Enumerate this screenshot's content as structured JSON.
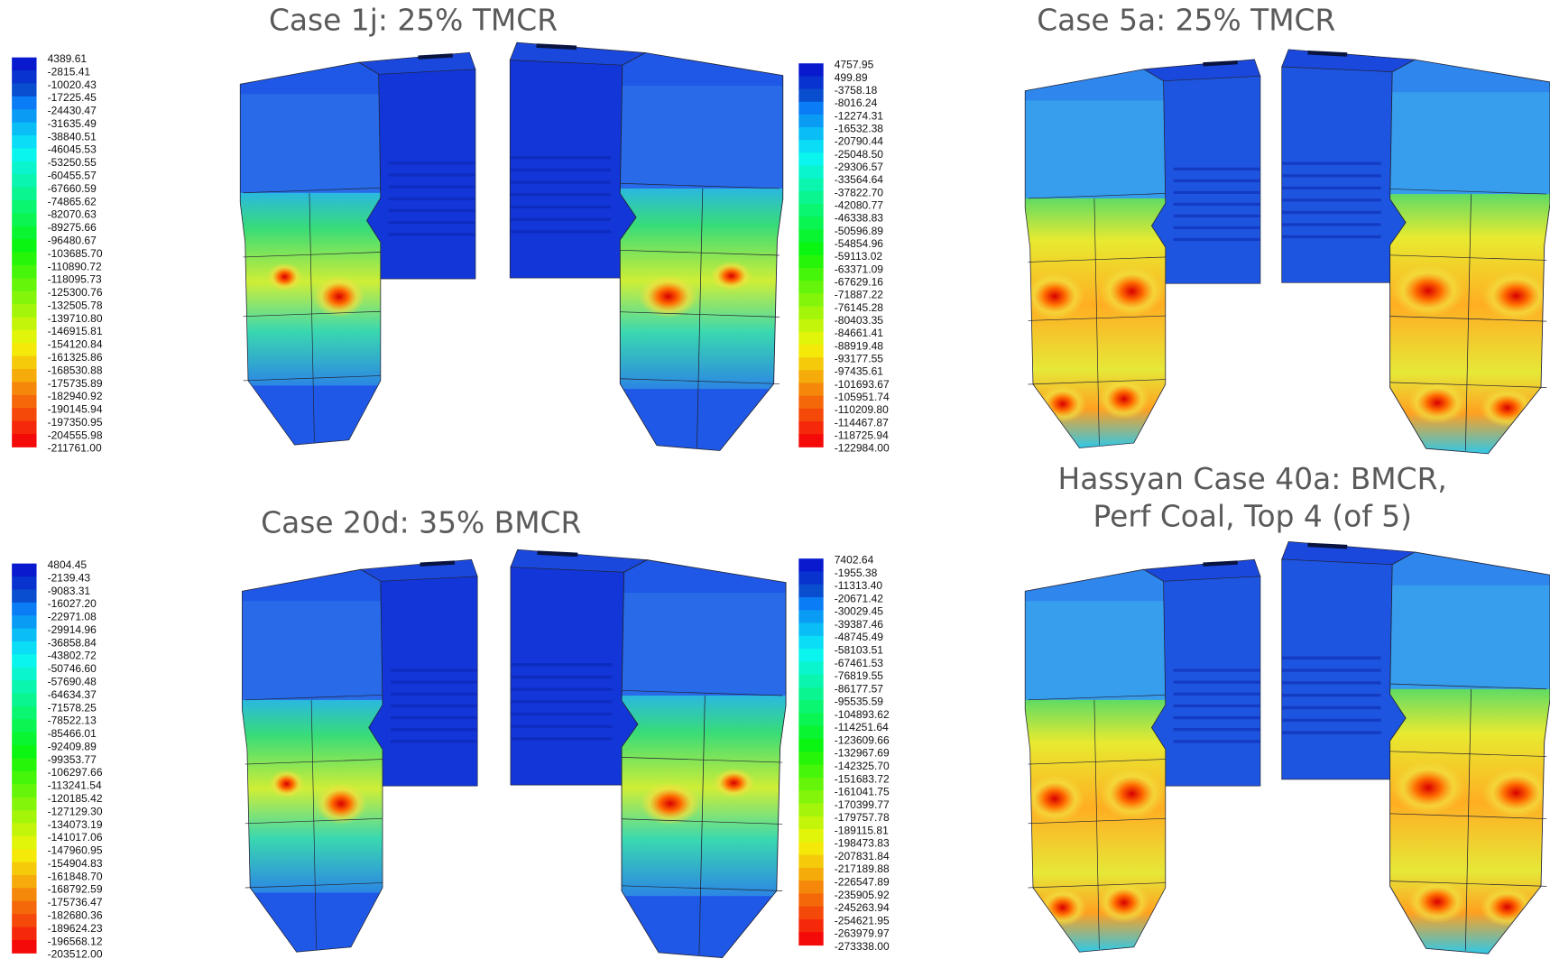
{
  "panels": [
    {
      "title_lines": [
        "Case 1j: 25% TMCR"
      ],
      "legends": [
        {
          "labels": [
            "4389.61",
            "-2815.41",
            "-10020.43",
            "-17225.45",
            "-24430.47",
            "-31635.49",
            "-38840.51",
            "-46045.53",
            "-53250.55",
            "-60455.57",
            "-67660.59",
            "-74865.62",
            "-82070.63",
            "-89275.66",
            "-96480.67",
            "-103685.70",
            "-110890.72",
            "-118095.73",
            "-125300.76",
            "-132505.78",
            "-139710.80",
            "-146915.81",
            "-154120.84",
            "-161325.86",
            "-168530.88",
            "-175735.89",
            "-182940.92",
            "-190145.94",
            "-197350.95",
            "-204555.98",
            "-211761.00"
          ]
        },
        {
          "labels": [
            "4757.95",
            "499.89",
            "-3758.18",
            "-8016.24",
            "-12274.31",
            "-16532.38",
            "-20790.44",
            "-25048.50",
            "-29306.57",
            "-33564.64",
            "-37822.70",
            "-42080.77",
            "-46338.83",
            "-50596.89",
            "-54854.96",
            "-59113.02",
            "-63371.09",
            "-67629.16",
            "-71887.22",
            "-76145.28",
            "-80403.35",
            "-84661.41",
            "-88919.48",
            "-93177.55",
            "-97435.61",
            "-101693.67",
            "-105951.74",
            "-110209.80",
            "-114467.87",
            "-118725.94",
            "-122984.00"
          ]
        }
      ]
    },
    {
      "title_lines": [
        "Case 5a: 25% TMCR"
      ]
    },
    {
      "title_lines": [
        "Case 20d: 35% BMCR"
      ],
      "legends": [
        {
          "labels": [
            "4804.45",
            "-2139.43",
            "-9083.31",
            "-16027.20",
            "-22971.08",
            "-29914.96",
            "-36858.84",
            "-43802.72",
            "-50746.60",
            "-57690.48",
            "-64634.37",
            "-71578.25",
            "-78522.13",
            "-85466.01",
            "-92409.89",
            "-99353.77",
            "-106297.66",
            "-113241.54",
            "-120185.42",
            "-127129.30",
            "-134073.19",
            "-141017.06",
            "-147960.95",
            "-154904.83",
            "-161848.70",
            "-168792.59",
            "-175736.47",
            "-182680.36",
            "-189624.23",
            "-196568.12",
            "-203512.00"
          ]
        },
        {
          "labels": [
            "7402.64",
            "-1955.38",
            "-11313.40",
            "-20671.42",
            "-30029.45",
            "-39387.46",
            "-48745.49",
            "-58103.51",
            "-67461.53",
            "-76819.55",
            "-86177.57",
            "-95535.59",
            "-104893.62",
            "-114251.64",
            "-123609.66",
            "-132967.69",
            "-142325.70",
            "-151683.72",
            "-161041.75",
            "-170399.77",
            "-179757.78",
            "-189115.81",
            "-198473.83",
            "-207831.84",
            "-217189.88",
            "-226547.89",
            "-235905.92",
            "-245263.94",
            "-254621.95",
            "-263979.97",
            "-273338.00"
          ]
        }
      ]
    },
    {
      "title_lines": [
        "Hassyan Case 40a: BMCR,",
        "Perf Coal, Top 4 (of 5)"
      ]
    }
  ]
}
